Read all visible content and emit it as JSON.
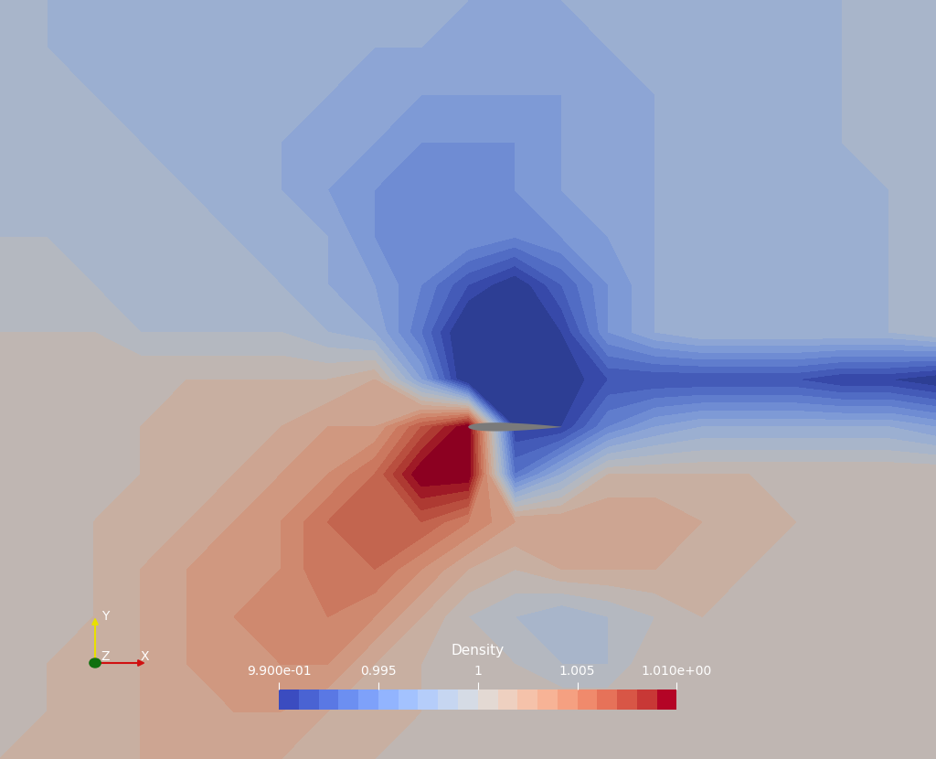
{
  "chart_data": {
    "type": "contour",
    "title": "Density",
    "colorbar": {
      "range": [
        0.99,
        1.01
      ],
      "ticks": [
        {
          "value": 0.99,
          "label": "9.900e-01"
        },
        0.995,
        1,
        1.005,
        {
          "value": 1.01,
          "label": "1.010e+00"
        }
      ]
    },
    "cells": [
      [
        0.999,
        0.998,
        0.998,
        0.998,
        0.998,
        0.998,
        0.998,
        0.998,
        0.998,
        0.998,
        0.997,
        0.997,
        0.997,
        0.998,
        0.998,
        0.998,
        0.998,
        0.998,
        0.998,
        0.999,
        0.999
      ],
      [
        0.999,
        0.998,
        0.998,
        0.998,
        0.998,
        0.998,
        0.998,
        0.998,
        0.997,
        0.997,
        0.997,
        0.997,
        0.997,
        0.997,
        0.998,
        0.998,
        0.998,
        0.998,
        0.998,
        0.999,
        0.999
      ],
      [
        0.999,
        0.999,
        0.998,
        0.998,
        0.998,
        0.998,
        0.998,
        0.997,
        0.997,
        0.996,
        0.996,
        0.996,
        0.996,
        0.997,
        0.997,
        0.998,
        0.998,
        0.998,
        0.998,
        0.999,
        0.999
      ],
      [
        0.999,
        0.999,
        0.999,
        0.998,
        0.998,
        0.998,
        0.997,
        0.997,
        0.996,
        0.995,
        0.995,
        0.995,
        0.996,
        0.997,
        0.997,
        0.998,
        0.998,
        0.998,
        0.998,
        0.999,
        0.999
      ],
      [
        0.999,
        0.999,
        0.999,
        0.999,
        0.998,
        0.998,
        0.997,
        0.996,
        0.995,
        0.994,
        0.994,
        0.995,
        0.996,
        0.997,
        0.997,
        0.998,
        0.998,
        0.998,
        0.998,
        0.998,
        0.999
      ],
      [
        0.999,
        0.999,
        0.999,
        0.999,
        0.999,
        0.998,
        0.998,
        0.997,
        0.995,
        0.995,
        0.995,
        0.994,
        0.995,
        0.996,
        0.997,
        0.998,
        0.998,
        0.998,
        0.998,
        0.998,
        0.999
      ],
      [
        1.0,
        1.0,
        0.999,
        0.999,
        0.999,
        0.999,
        0.998,
        0.997,
        0.996,
        0.994,
        0.991,
        0.989,
        0.992,
        0.995,
        0.997,
        0.998,
        0.998,
        0.998,
        0.998,
        0.998,
        0.999
      ],
      [
        1.0,
        1.0,
        1.0,
        0.999,
        0.999,
        0.999,
        0.999,
        0.998,
        0.997,
        0.993,
        0.988,
        0.988,
        0.99,
        0.995,
        0.997,
        0.998,
        0.998,
        0.998,
        0.998,
        0.998,
        0.999
      ],
      [
        1.001,
        1.001,
        1.001,
        1.001,
        1.001,
        1.001,
        1.001,
        1.001,
        1.002,
        0.996,
        0.988,
        0.988,
        0.989,
        0.991,
        0.991,
        0.991,
        0.991,
        0.991,
        0.99,
        0.99,
        0.989
      ],
      [
        1.001,
        1.001,
        1.001,
        1.001,
        1.002,
        1.002,
        1.002,
        1.003,
        1.003,
        1.007,
        1.011,
        0.99,
        0.99,
        0.994,
        0.996,
        0.997,
        0.997,
        0.997,
        0.997,
        0.997,
        0.996
      ],
      [
        1.001,
        1.001,
        1.001,
        1.001,
        1.002,
        1.002,
        1.003,
        1.004,
        1.006,
        1.011,
        1.011,
        0.993,
        0.997,
        1.001,
        1.001,
        1.001,
        1.001,
        1.001,
        1.001,
        1.001,
        1.001
      ],
      [
        1.001,
        1.001,
        1.001,
        1.002,
        1.002,
        1.003,
        1.004,
        1.006,
        1.007,
        1.007,
        1.005,
        1.003,
        1.003,
        1.003,
        1.003,
        1.002,
        1.002,
        1.001,
        1.001,
        1.001,
        1.001
      ],
      [
        1.001,
        1.001,
        1.001,
        1.002,
        1.003,
        1.004,
        1.004,
        1.006,
        1.006,
        1.004,
        1.002,
        1.001,
        1.002,
        1.002,
        1.002,
        1.002,
        1.001,
        1.001,
        1.001,
        1.001,
        1.001
      ],
      [
        1.001,
        1.001,
        1.001,
        1.002,
        1.003,
        1.004,
        1.005,
        1.005,
        1.004,
        1.002,
        1.0,
        0.999,
        0.998,
        0.999,
        1.0,
        1.001,
        1.001,
        1.001,
        1.001,
        1.001,
        1.001
      ],
      [
        1.001,
        1.001,
        1.002,
        1.002,
        1.003,
        1.004,
        1.004,
        1.004,
        1.002,
        1.001,
        1.001,
        1.0,
        0.999,
        0.999,
        1.001,
        1.001,
        1.001,
        1.001,
        1.001,
        1.001,
        1.001
      ],
      [
        1.001,
        1.001,
        1.002,
        1.002,
        1.003,
        1.003,
        1.003,
        1.002,
        1.002,
        1.001,
        1.001,
        1.001,
        1.001,
        1.001,
        1.001,
        1.001,
        1.001,
        1.001,
        1.001,
        1.001,
        1.001
      ],
      [
        1.001,
        1.002,
        1.002,
        1.002,
        1.003,
        1.003,
        1.002,
        1.002,
        1.001,
        1.001,
        1.001,
        1.001,
        1.001,
        1.001,
        1.001,
        1.001,
        1.001,
        1.001,
        1.001,
        1.001,
        1.001
      ]
    ],
    "annotations": [
      "Y",
      "Z",
      "X"
    ]
  }
}
